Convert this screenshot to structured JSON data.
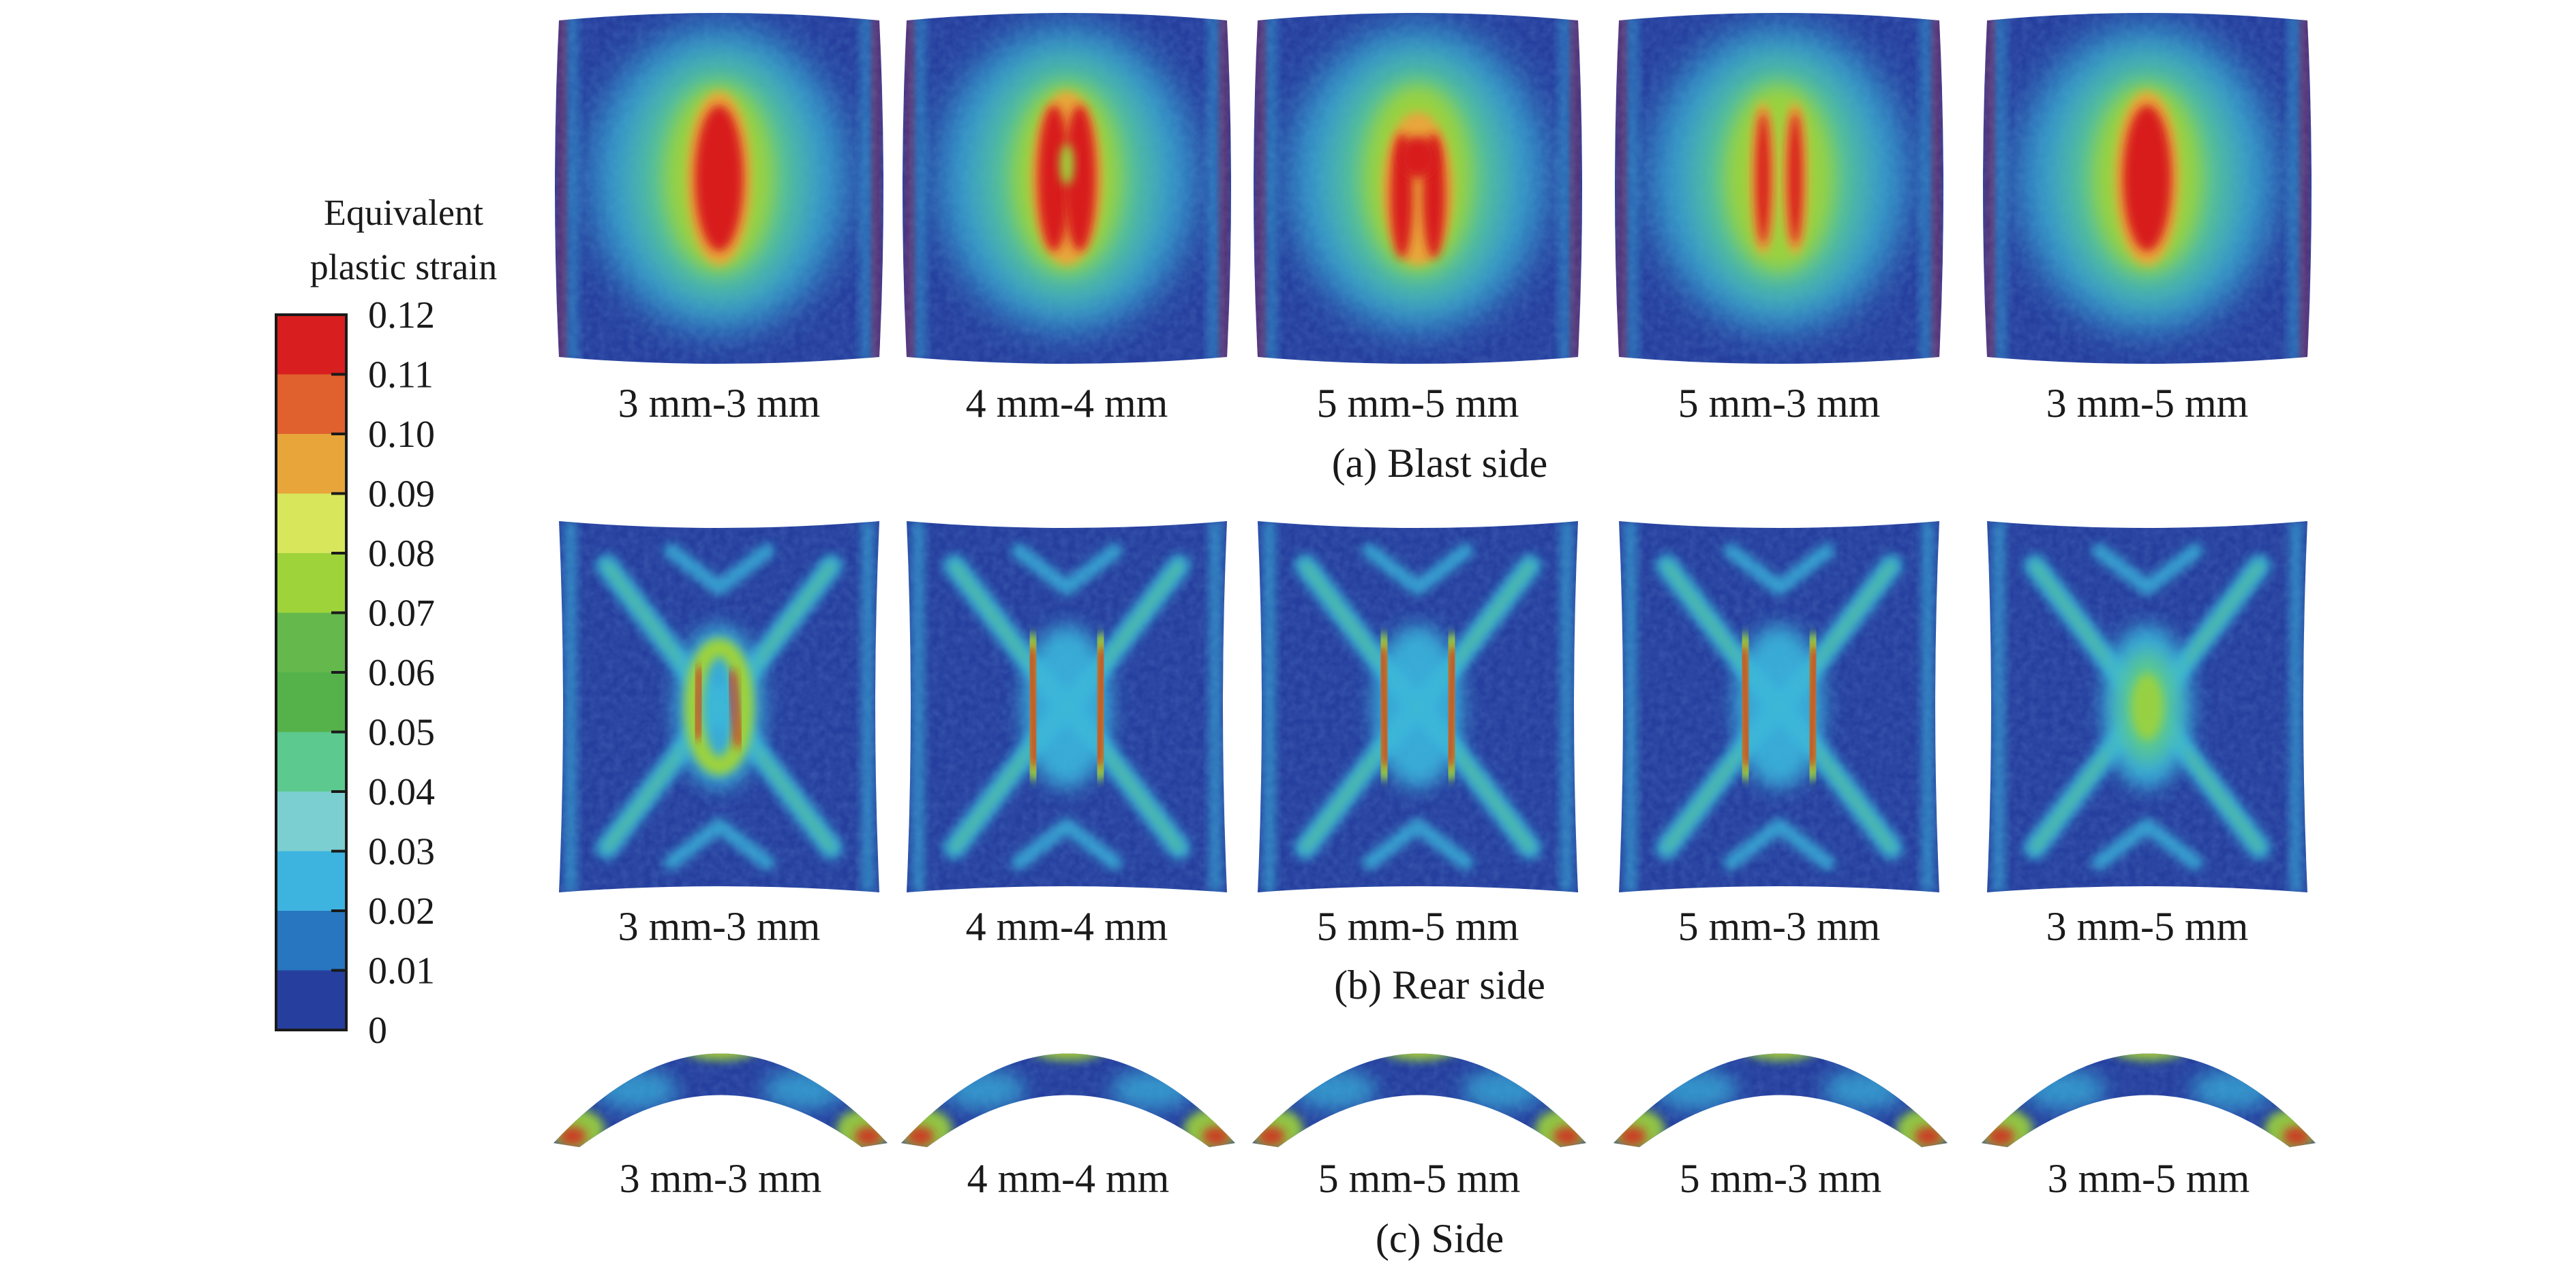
{
  "legend": {
    "title_line1": "Equivalent",
    "title_line2": "plastic strain",
    "levels": [
      "0.12",
      "0.11",
      "0.10",
      "0.09",
      "0.08",
      "0.07",
      "0.06",
      "0.05",
      "0.04",
      "0.03",
      "0.02",
      "0.01",
      "0"
    ],
    "band_colors": [
      "#d81e1e",
      "#e0602e",
      "#e8a63a",
      "#d8e65c",
      "#9ed33a",
      "#64b84c",
      "#55b24a",
      "#5cc98e",
      "#7ccfd0",
      "#3db4e0",
      "#2876c0",
      "#263f9e"
    ]
  },
  "colormap": {
    "background": "#263f9e",
    "deep": "#1f3590",
    "low": "#2f78c8",
    "mid_low": "#3ab6dc",
    "mid": "#5cc98e",
    "mid_high": "#9ed33a",
    "high_a": "#e8a63a",
    "high_b": "#d81e1e"
  },
  "rows": [
    {
      "caption": "(a) Blast side",
      "view": "blast",
      "panels": [
        {
          "label": "3 mm-3 mm",
          "pattern": "single"
        },
        {
          "label": "4 mm-4 mm",
          "pattern": "split_top"
        },
        {
          "label": "5 mm-5 mm",
          "pattern": "arch"
        },
        {
          "label": "5 mm-3 mm",
          "pattern": "double"
        },
        {
          "label": "3 mm-5 mm",
          "pattern": "single"
        }
      ]
    },
    {
      "caption": "(b) Rear side",
      "view": "rear",
      "panels": [
        {
          "label": "3 mm-3 mm",
          "pattern": "ring"
        },
        {
          "label": "4 mm-4 mm",
          "pattern": "bars"
        },
        {
          "label": "5 mm-5 mm",
          "pattern": "bars"
        },
        {
          "label": "5 mm-3 mm",
          "pattern": "bars"
        },
        {
          "label": "3 mm-5 mm",
          "pattern": "weak"
        }
      ]
    },
    {
      "caption": "(c) Side",
      "view": "side",
      "panels": [
        {
          "label": "3 mm-3 mm",
          "pattern": "arc"
        },
        {
          "label": "4 mm-4 mm",
          "pattern": "arc"
        },
        {
          "label": "5 mm-5 mm",
          "pattern": "arc"
        },
        {
          "label": "5 mm-3 mm",
          "pattern": "arc"
        },
        {
          "label": "3 mm-5 mm",
          "pattern": "arc"
        }
      ]
    }
  ]
}
